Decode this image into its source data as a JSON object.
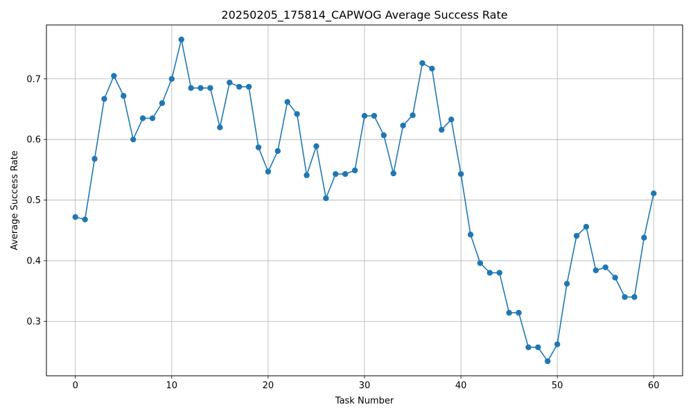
{
  "chart_data": {
    "type": "line",
    "title": "20250205_175814_CAPWOG Average Success Rate",
    "xlabel": "Task Number",
    "ylabel": "Average Success Rate",
    "xlim": [
      -3,
      63
    ],
    "ylim": [
      0.21,
      0.789
    ],
    "xticks": [
      0,
      10,
      20,
      30,
      40,
      50,
      60
    ],
    "yticks": [
      0.3,
      0.4,
      0.5,
      0.6,
      0.7
    ],
    "xtick_labels": [
      "0",
      "10",
      "20",
      "30",
      "40",
      "50",
      "60"
    ],
    "ytick_labels": [
      "0.3",
      "0.4",
      "0.5",
      "0.6",
      "0.7"
    ],
    "grid": true,
    "color": "#1f77b4",
    "marker": "circle",
    "series": [
      {
        "x": [
          0,
          1,
          2,
          3,
          4,
          5,
          6,
          7,
          8,
          9,
          10,
          11,
          12,
          13,
          14,
          15,
          16,
          17,
          18,
          19,
          20,
          21,
          22,
          23,
          24,
          25,
          26,
          27,
          28,
          29,
          30,
          31,
          32,
          33,
          34,
          35,
          36,
          37,
          38,
          39,
          40,
          41,
          42,
          43,
          44,
          45,
          46,
          47,
          48,
          49,
          50,
          51,
          52,
          53,
          54,
          55,
          56,
          57,
          58,
          59,
          60
        ],
        "values": [
          0.472,
          0.468,
          0.568,
          0.667,
          0.705,
          0.672,
          0.6,
          0.635,
          0.635,
          0.66,
          0.7,
          0.765,
          0.685,
          0.685,
          0.685,
          0.62,
          0.694,
          0.687,
          0.687,
          0.587,
          0.547,
          0.581,
          0.662,
          0.642,
          0.541,
          0.589,
          0.503,
          0.543,
          0.543,
          0.549,
          0.639,
          0.639,
          0.607,
          0.544,
          0.623,
          0.64,
          0.726,
          0.717,
          0.616,
          0.633,
          0.543,
          0.443,
          0.396,
          0.38,
          0.38,
          0.314,
          0.314,
          0.257,
          0.257,
          0.234,
          0.262,
          0.362,
          0.441,
          0.456,
          0.384,
          0.389,
          0.372,
          0.34,
          0.34,
          0.438,
          0.511
        ]
      }
    ]
  }
}
